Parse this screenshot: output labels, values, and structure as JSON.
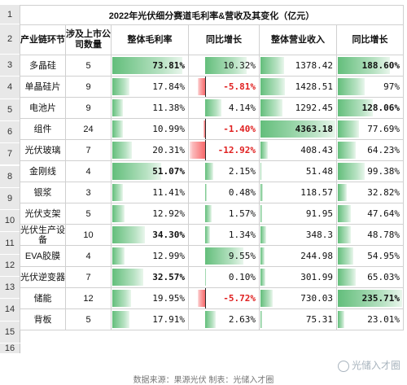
{
  "title": "2022年光伏细分赛道毛利率&营收及其变化（亿元）",
  "headers": {
    "segment": "产业链环节",
    "companies": "涉及上市公司数量",
    "gross_margin": "整体毛利率",
    "margin_yoy": "同比增长",
    "revenue": "整体营业收入",
    "revenue_yoy": "同比增长"
  },
  "row_numbers": [
    "1",
    "2",
    "3",
    "4",
    "5",
    "6",
    "7",
    "8",
    "9",
    "10",
    "11",
    "12",
    "13",
    "14",
    "15",
    "16"
  ],
  "rows": [
    {
      "name": "多晶硅",
      "count": "5",
      "margin": "73.81%",
      "margin_val": 73.81,
      "margin_yoy": "10.32%",
      "margin_yoy_val": 10.32,
      "revenue": "1378.42",
      "revenue_val": 1378.42,
      "rev_yoy": "188.60%",
      "rev_yoy_val": 188.6
    },
    {
      "name": "单晶硅片",
      "count": "9",
      "margin": "17.84%",
      "margin_val": 17.84,
      "margin_yoy": "-5.81%",
      "margin_yoy_val": -5.81,
      "revenue": "1428.51",
      "revenue_val": 1428.51,
      "rev_yoy": "97%",
      "rev_yoy_val": 97
    },
    {
      "name": "电池片",
      "count": "9",
      "margin": "11.38%",
      "margin_val": 11.38,
      "margin_yoy": "4.14%",
      "margin_yoy_val": 4.14,
      "revenue": "1292.45",
      "revenue_val": 1292.45,
      "rev_yoy": "128.06%",
      "rev_yoy_val": 128.06
    },
    {
      "name": "组件",
      "count": "24",
      "margin": "10.99%",
      "margin_val": 10.99,
      "margin_yoy": "-1.40%",
      "margin_yoy_val": -1.4,
      "revenue": "4363.18",
      "revenue_val": 4363.18,
      "rev_yoy": "77.69%",
      "rev_yoy_val": 77.69
    },
    {
      "name": "光伏玻璃",
      "count": "7",
      "margin": "20.31%",
      "margin_val": 20.31,
      "margin_yoy": "-12.92%",
      "margin_yoy_val": -12.92,
      "revenue": "408.43",
      "revenue_val": 408.43,
      "rev_yoy": "64.23%",
      "rev_yoy_val": 64.23
    },
    {
      "name": "金刚线",
      "count": "4",
      "margin": "51.07%",
      "margin_val": 51.07,
      "margin_yoy": "2.15%",
      "margin_yoy_val": 2.15,
      "revenue": "51.48",
      "revenue_val": 51.48,
      "rev_yoy": "99.38%",
      "rev_yoy_val": 99.38
    },
    {
      "name": "银浆",
      "count": "3",
      "margin": "11.41%",
      "margin_val": 11.41,
      "margin_yoy": "0.48%",
      "margin_yoy_val": 0.48,
      "revenue": "118.57",
      "revenue_val": 118.57,
      "rev_yoy": "32.82%",
      "rev_yoy_val": 32.82
    },
    {
      "name": "光伏支架",
      "count": "5",
      "margin": "12.92%",
      "margin_val": 12.92,
      "margin_yoy": "1.57%",
      "margin_yoy_val": 1.57,
      "revenue": "91.95",
      "revenue_val": 91.95,
      "rev_yoy": "47.64%",
      "rev_yoy_val": 47.64
    },
    {
      "name": "光伏生产设备",
      "count": "10",
      "margin": "34.30%",
      "margin_val": 34.3,
      "margin_yoy": "1.34%",
      "margin_yoy_val": 1.34,
      "revenue": "348.3",
      "revenue_val": 348.3,
      "rev_yoy": "48.78%",
      "rev_yoy_val": 48.78
    },
    {
      "name": "EVA胶膜",
      "count": "4",
      "margin": "12.99%",
      "margin_val": 12.99,
      "margin_yoy": "9.55%",
      "margin_yoy_val": 9.55,
      "revenue": "244.98",
      "revenue_val": 244.98,
      "rev_yoy": "54.95%",
      "rev_yoy_val": 54.95
    },
    {
      "name": "光伏逆变器",
      "count": "7",
      "margin": "32.57%",
      "margin_val": 32.57,
      "margin_yoy": "0.10%",
      "margin_yoy_val": 0.1,
      "revenue": "301.99",
      "revenue_val": 301.99,
      "rev_yoy": "65.03%",
      "rev_yoy_val": 65.03
    },
    {
      "name": "储能",
      "count": "12",
      "margin": "19.95%",
      "margin_val": 19.95,
      "margin_yoy": "-5.72%",
      "margin_yoy_val": -5.72,
      "revenue": "730.03",
      "revenue_val": 730.03,
      "rev_yoy": "235.71%",
      "rev_yoy_val": 235.71
    },
    {
      "name": "背板",
      "count": "5",
      "margin": "17.91%",
      "margin_val": 17.91,
      "margin_yoy": "2.63%",
      "margin_yoy_val": 2.63,
      "revenue": "75.31",
      "revenue_val": 75.31,
      "rev_yoy": "23.01%",
      "rev_yoy_val": 23.01
    }
  ],
  "bold_margins": [
    0,
    5,
    8,
    10
  ],
  "bold_revenue": [
    3
  ],
  "bold_rev_yoy": [
    0,
    2,
    11
  ],
  "source": "数据来源：果源光伏   制表：光储入才圈",
  "watermark": "光储入才圈",
  "colors": {
    "positive_bar": "#63be7b",
    "negative_bar": "#f8696b",
    "negative_text": "#e02020"
  }
}
